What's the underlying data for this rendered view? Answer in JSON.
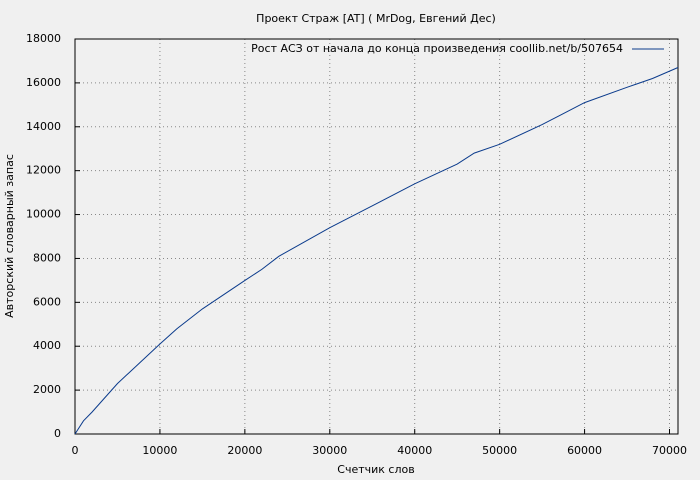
{
  "chart_data": {
    "type": "line",
    "title": "Проект Страж [AT] ( MrDog, Евгений Дес)",
    "x_label": "Счетчик слов",
    "y_label": "Авторский словарный запас",
    "x": [
      0,
      1000,
      2000,
      5000,
      10000,
      12000,
      15000,
      20000,
      22000,
      24000,
      30000,
      35000,
      40000,
      45000,
      47000,
      50000,
      55000,
      57000,
      60000,
      65000,
      68000,
      71000
    ],
    "series": [
      {
        "name": "Рост АСЗ от начала до конца произведения coollib.net/b/507654",
        "color": "#0b3b8c",
        "values": [
          0,
          600,
          1000,
          2300,
          4100,
          4800,
          5700,
          7000,
          7500,
          8100,
          9400,
          10400,
          11400,
          12300,
          12800,
          13200,
          14100,
          14500,
          15100,
          15800,
          16200,
          16700
        ]
      }
    ],
    "xlim": [
      0,
      71000
    ],
    "ylim": [
      0,
      18000
    ],
    "xticks": [
      0,
      10000,
      20000,
      30000,
      40000,
      50000,
      60000,
      70000
    ],
    "yticks": [
      0,
      2000,
      4000,
      6000,
      8000,
      10000,
      12000,
      14000,
      16000,
      18000
    ],
    "grid": true,
    "legend": "top-right"
  }
}
